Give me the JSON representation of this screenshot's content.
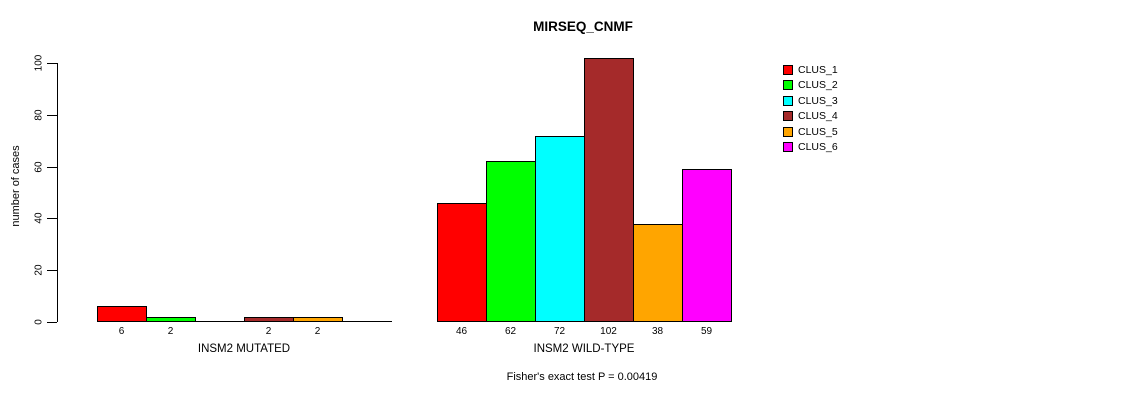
{
  "chart_data": {
    "type": "bar",
    "title": "MIRSEQ_CNMF",
    "ylabel": "number of cases",
    "ylim": [
      0,
      100
    ],
    "yticks": [
      0,
      20,
      40,
      60,
      80,
      100
    ],
    "categories": [
      "CLUS_1",
      "CLUS_2",
      "CLUS_3",
      "CLUS_4",
      "CLUS_5",
      "CLUS_6"
    ],
    "colors": [
      "#ff0000",
      "#00ff00",
      "#00ffff",
      "#a52a2a",
      "#ffa500",
      "#ff00ff"
    ],
    "groups": [
      {
        "label": "INSM2 MUTATED",
        "values": [
          6,
          2,
          0,
          2,
          2,
          0
        ]
      },
      {
        "label": "INSM2 WILD-TYPE",
        "values": [
          46,
          62,
          72,
          102,
          38,
          59
        ]
      }
    ],
    "legend": [
      "CLUS_1",
      "CLUS_2",
      "CLUS_3",
      "CLUS_4",
      "CLUS_5",
      "CLUS_6"
    ],
    "legend_position": "right",
    "grid": false,
    "annotation": "Fisher's exact test P = 0.00419"
  }
}
